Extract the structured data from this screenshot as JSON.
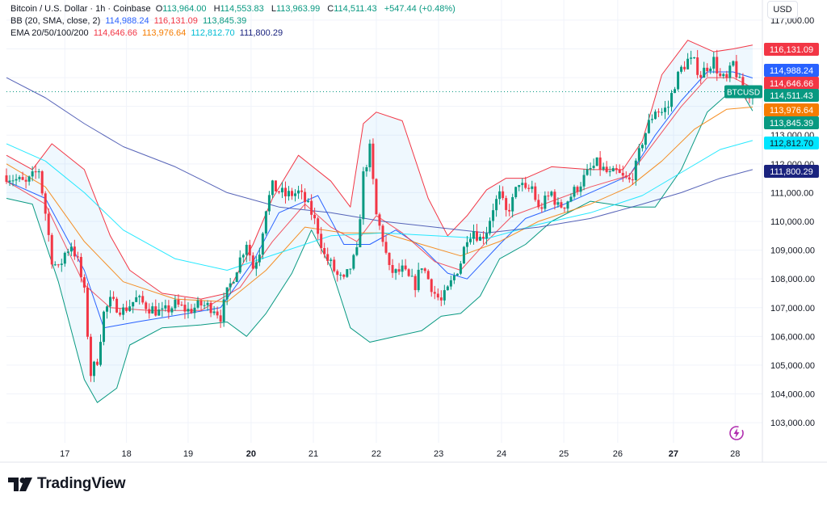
{
  "header": {
    "symbol_title": "Bitcoin / U.S. Dollar · 1h · Coinbase",
    "o_label": "O",
    "o_value": "113,964.00",
    "h_label": "H",
    "h_value": "114,553.83",
    "l_label": "L",
    "l_value": "113,963.99",
    "c_label": "C",
    "c_value": "114,511.43",
    "change": "+547.44 (+0.48%)",
    "bb_label": "BB (20, SMA, close, 2)",
    "bb_basis": "114,988.24",
    "bb_upper": "116,131.09",
    "bb_lower": "113,845.39",
    "ema_label": "EMA 20/50/100/200",
    "ema20": "114,646.66",
    "ema50": "113,976.64",
    "ema100": "112,812.70",
    "ema200": "111,800.29"
  },
  "currency_button": "USD",
  "brand": "TradingView",
  "colors": {
    "up": "#089981",
    "down": "#f23645",
    "bb_basis": "#2962ff",
    "bb_band": "#f23645",
    "bb_lower": "#089981",
    "ema20": "#f23645",
    "ema50": "#f57c00",
    "ema100": "#00bcd4",
    "ema200": "#1a237e",
    "fill": "#2196f3"
  },
  "chart_data": {
    "type": "candlestick",
    "x_ticks": [
      {
        "label": "17",
        "bold": false,
        "t": 9.0
      },
      {
        "label": "18",
        "bold": false,
        "t": 18.5
      },
      {
        "label": "19",
        "bold": false,
        "t": 28.0
      },
      {
        "label": "20",
        "bold": true,
        "t": 37.7
      },
      {
        "label": "21",
        "bold": false,
        "t": 47.3
      },
      {
        "label": "22",
        "bold": false,
        "t": 57.0
      },
      {
        "label": "23",
        "bold": false,
        "t": 66.6
      },
      {
        "label": "24",
        "bold": false,
        "t": 76.3
      },
      {
        "label": "25",
        "bold": false,
        "t": 85.9
      },
      {
        "label": "26",
        "bold": false,
        "t": 94.2
      },
      {
        "label": "27",
        "bold": true,
        "t": 102.8
      },
      {
        "label": "28",
        "bold": false,
        "t": 112.3
      }
    ],
    "y_ticks": [
      "103,000.00",
      "104,000.00",
      "105,000.00",
      "106,000.00",
      "107,000.00",
      "108,000.00",
      "109,000.00",
      "110,000.00",
      "111,000.00",
      "112,000.00",
      "113,000.00",
      "114,000.00",
      "115,000.00",
      "116,000.00",
      "117,000.00"
    ],
    "y_tick_values": [
      103000,
      104000,
      105000,
      106000,
      107000,
      108000,
      109000,
      110000,
      111000,
      112000,
      113000,
      114000,
      115000,
      116000,
      117000
    ],
    "ylim": [
      102300,
      117700
    ],
    "xlim": [
      0,
      116.5
    ],
    "price_labels": [
      {
        "text": "116,131.09",
        "value": 116131.09,
        "bg": "#f23645"
      },
      {
        "text": "114,988.24",
        "value": 114988.24,
        "bg": "#2962ff"
      },
      {
        "text": "114,646.66",
        "value": 114646.66,
        "bg": "#f23645"
      },
      {
        "text": "BTCUSD",
        "value": 114511.43,
        "bg": "#089981",
        "tag": true
      },
      {
        "text": "114,511.43",
        "value": 114511.43,
        "bg": "#089981"
      },
      {
        "text": "113,976.64",
        "value": 113976.64,
        "bg": "#f57c00"
      },
      {
        "text": "113,845.39",
        "value": 113845.39,
        "bg": "#089981"
      },
      {
        "text": "112,812.70",
        "value": 112812.7,
        "bg": "#00e5ff"
      },
      {
        "text": "111,800.29",
        "value": 111800.29,
        "bg": "#1a237e"
      }
    ],
    "last_price": 114511.43,
    "close_path": [
      [
        0,
        111600
      ],
      [
        3,
        111300
      ],
      [
        5,
        111800
      ],
      [
        6,
        110300
      ],
      [
        7,
        108700
      ],
      [
        8,
        108300
      ],
      [
        9,
        108900
      ],
      [
        10,
        109200
      ],
      [
        11,
        108600
      ],
      [
        12,
        107500
      ],
      [
        13,
        104700
      ],
      [
        14,
        105200
      ],
      [
        15,
        106800
      ],
      [
        16,
        107200
      ],
      [
        18,
        106900
      ],
      [
        20,
        107300
      ],
      [
        22,
        107000
      ],
      [
        24,
        106800
      ],
      [
        26,
        107100
      ],
      [
        28,
        106900
      ],
      [
        30,
        107100
      ],
      [
        32,
        107000
      ],
      [
        33,
        106700
      ],
      [
        34,
        107500
      ],
      [
        36,
        108700
      ],
      [
        37,
        109300
      ],
      [
        38,
        108400
      ],
      [
        39,
        109000
      ],
      [
        40,
        110500
      ],
      [
        41,
        111200
      ],
      [
        43,
        110900
      ],
      [
        45,
        111000
      ],
      [
        46,
        110700
      ],
      [
        47,
        110300
      ],
      [
        48,
        109700
      ],
      [
        49,
        108800
      ],
      [
        50,
        108500
      ],
      [
        51,
        108100
      ],
      [
        52,
        107900
      ],
      [
        53,
        108400
      ],
      [
        54,
        108900
      ],
      [
        55,
        111600
      ],
      [
        56,
        112500
      ],
      [
        57,
        110200
      ],
      [
        58,
        109400
      ],
      [
        59,
        108300
      ],
      [
        60,
        108200
      ],
      [
        61,
        108300
      ],
      [
        62,
        108000
      ],
      [
        63,
        107800
      ],
      [
        64,
        108500
      ],
      [
        65,
        108000
      ],
      [
        66,
        107500
      ],
      [
        67,
        107200
      ],
      [
        68,
        107600
      ],
      [
        69,
        108100
      ],
      [
        70,
        108600
      ],
      [
        71,
        109500
      ],
      [
        72,
        109700
      ],
      [
        73,
        109400
      ],
      [
        74,
        109700
      ],
      [
        75,
        110500
      ],
      [
        76,
        110900
      ],
      [
        77,
        110300
      ],
      [
        78,
        110700
      ],
      [
        79,
        111400
      ],
      [
        80,
        111000
      ],
      [
        81,
        111200
      ],
      [
        82,
        110400
      ],
      [
        83,
        110700
      ],
      [
        84,
        111000
      ],
      [
        85,
        110500
      ],
      [
        86,
        110600
      ],
      [
        87,
        110900
      ],
      [
        88,
        111200
      ],
      [
        89,
        111500
      ],
      [
        90,
        111800
      ],
      [
        91,
        112000
      ],
      [
        92,
        111800
      ],
      [
        93,
        111600
      ],
      [
        94,
        111700
      ],
      [
        95,
        111500
      ],
      [
        96,
        111400
      ],
      [
        97,
        111900
      ],
      [
        98,
        112800
      ],
      [
        99,
        113400
      ],
      [
        100,
        113900
      ],
      [
        101,
        113800
      ],
      [
        102,
        114000
      ],
      [
        103,
        114800
      ],
      [
        104,
        115300
      ],
      [
        105,
        115600
      ],
      [
        106,
        115500
      ],
      [
        107,
        115100
      ],
      [
        108,
        115400
      ],
      [
        109,
        115600
      ],
      [
        110,
        115000
      ],
      [
        111,
        114900
      ],
      [
        112,
        115500
      ],
      [
        113,
        114800
      ],
      [
        114,
        114300
      ],
      [
        115,
        114511
      ]
    ],
    "series": [
      {
        "name": "BB basis",
        "path": [
          [
            0,
            111400
          ],
          [
            6,
            110800
          ],
          [
            12,
            108300
          ],
          [
            15,
            106300
          ],
          [
            20,
            106500
          ],
          [
            28,
            106800
          ],
          [
            33,
            107000
          ],
          [
            38,
            108600
          ],
          [
            42,
            110300
          ],
          [
            48,
            110900
          ],
          [
            52,
            109200
          ],
          [
            56,
            109200
          ],
          [
            60,
            109700
          ],
          [
            64,
            109100
          ],
          [
            68,
            108200
          ],
          [
            71,
            108000
          ],
          [
            76,
            109200
          ],
          [
            80,
            110100
          ],
          [
            86,
            110600
          ],
          [
            92,
            111200
          ],
          [
            96,
            111600
          ],
          [
            100,
            113000
          ],
          [
            104,
            114200
          ],
          [
            108,
            115200
          ],
          [
            112,
            115200
          ],
          [
            115,
            114988
          ]
        ]
      },
      {
        "name": "BB upper",
        "path": [
          [
            0,
            112300
          ],
          [
            4,
            111800
          ],
          [
            7,
            112700
          ],
          [
            12,
            111800
          ],
          [
            16,
            109500
          ],
          [
            19,
            108300
          ],
          [
            24,
            107500
          ],
          [
            30,
            107300
          ],
          [
            34,
            107500
          ],
          [
            38,
            109200
          ],
          [
            41,
            110800
          ],
          [
            45,
            112300
          ],
          [
            50,
            111400
          ],
          [
            53,
            110500
          ],
          [
            55,
            113400
          ],
          [
            57,
            113800
          ],
          [
            61,
            113500
          ],
          [
            65,
            110800
          ],
          [
            68,
            109500
          ],
          [
            71,
            110200
          ],
          [
            74,
            111100
          ],
          [
            77,
            111500
          ],
          [
            80,
            111500
          ],
          [
            84,
            111900
          ],
          [
            90,
            111800
          ],
          [
            95,
            111800
          ],
          [
            98,
            112800
          ],
          [
            101,
            115100
          ],
          [
            105,
            116300
          ],
          [
            109,
            115900
          ],
          [
            112,
            116000
          ],
          [
            115,
            116131
          ]
        ]
      },
      {
        "name": "BB lower",
        "path": [
          [
            0,
            110800
          ],
          [
            4,
            110600
          ],
          [
            8,
            107900
          ],
          [
            12,
            104500
          ],
          [
            14,
            103700
          ],
          [
            17,
            104200
          ],
          [
            19,
            105700
          ],
          [
            24,
            106300
          ],
          [
            30,
            106400
          ],
          [
            34,
            106500
          ],
          [
            37,
            106000
          ],
          [
            40,
            106800
          ],
          [
            44,
            108200
          ],
          [
            47,
            109700
          ],
          [
            50,
            108400
          ],
          [
            53,
            106300
          ],
          [
            56,
            105800
          ],
          [
            60,
            106000
          ],
          [
            64,
            106200
          ],
          [
            67,
            106700
          ],
          [
            70,
            106800
          ],
          [
            73,
            107400
          ],
          [
            76,
            108700
          ],
          [
            80,
            109200
          ],
          [
            84,
            110000
          ],
          [
            90,
            110700
          ],
          [
            96,
            110500
          ],
          [
            100,
            110500
          ],
          [
            104,
            111800
          ],
          [
            108,
            113800
          ],
          [
            111,
            114400
          ],
          [
            113,
            114600
          ],
          [
            115,
            113845
          ]
        ]
      },
      {
        "name": "EMA20",
        "path": [
          [
            0,
            111400
          ],
          [
            6,
            110600
          ],
          [
            12,
            107800
          ],
          [
            16,
            107000
          ],
          [
            22,
            106900
          ],
          [
            30,
            106900
          ],
          [
            36,
            107700
          ],
          [
            41,
            109300
          ],
          [
            46,
            110600
          ],
          [
            50,
            109800
          ],
          [
            54,
            109300
          ],
          [
            57,
            110200
          ],
          [
            61,
            109600
          ],
          [
            66,
            108600
          ],
          [
            70,
            108300
          ],
          [
            74,
            109300
          ],
          [
            78,
            110200
          ],
          [
            84,
            110700
          ],
          [
            90,
            111200
          ],
          [
            96,
            111600
          ],
          [
            100,
            112800
          ],
          [
            104,
            114000
          ],
          [
            108,
            115000
          ],
          [
            112,
            115000
          ],
          [
            115,
            114647
          ]
        ]
      },
      {
        "name": "EMA50",
        "path": [
          [
            0,
            112000
          ],
          [
            6,
            111200
          ],
          [
            12,
            109300
          ],
          [
            18,
            107900
          ],
          [
            26,
            107300
          ],
          [
            34,
            107200
          ],
          [
            40,
            108300
          ],
          [
            46,
            109800
          ],
          [
            52,
            109600
          ],
          [
            58,
            109600
          ],
          [
            64,
            109200
          ],
          [
            70,
            108800
          ],
          [
            76,
            109300
          ],
          [
            82,
            110000
          ],
          [
            90,
            110600
          ],
          [
            96,
            111200
          ],
          [
            101,
            112100
          ],
          [
            106,
            113200
          ],
          [
            111,
            113900
          ],
          [
            115,
            113977
          ]
        ]
      },
      {
        "name": "EMA100",
        "path": [
          [
            0,
            112700
          ],
          [
            6,
            112100
          ],
          [
            12,
            111000
          ],
          [
            18,
            109700
          ],
          [
            26,
            108700
          ],
          [
            34,
            108300
          ],
          [
            42,
            108900
          ],
          [
            50,
            109500
          ],
          [
            58,
            109600
          ],
          [
            66,
            109500
          ],
          [
            74,
            109400
          ],
          [
            82,
            109900
          ],
          [
            90,
            110300
          ],
          [
            98,
            110900
          ],
          [
            104,
            111700
          ],
          [
            110,
            112500
          ],
          [
            115,
            112813
          ]
        ]
      },
      {
        "name": "EMA200",
        "path": [
          [
            0,
            115000
          ],
          [
            6,
            114300
          ],
          [
            12,
            113400
          ],
          [
            18,
            112600
          ],
          [
            26,
            111900
          ],
          [
            34,
            111000
          ],
          [
            42,
            110500
          ],
          [
            50,
            110300
          ],
          [
            58,
            110000
          ],
          [
            66,
            109800
          ],
          [
            74,
            109600
          ],
          [
            82,
            109800
          ],
          [
            90,
            110100
          ],
          [
            98,
            110600
          ],
          [
            104,
            111000
          ],
          [
            110,
            111500
          ],
          [
            115,
            111800
          ]
        ]
      }
    ]
  }
}
